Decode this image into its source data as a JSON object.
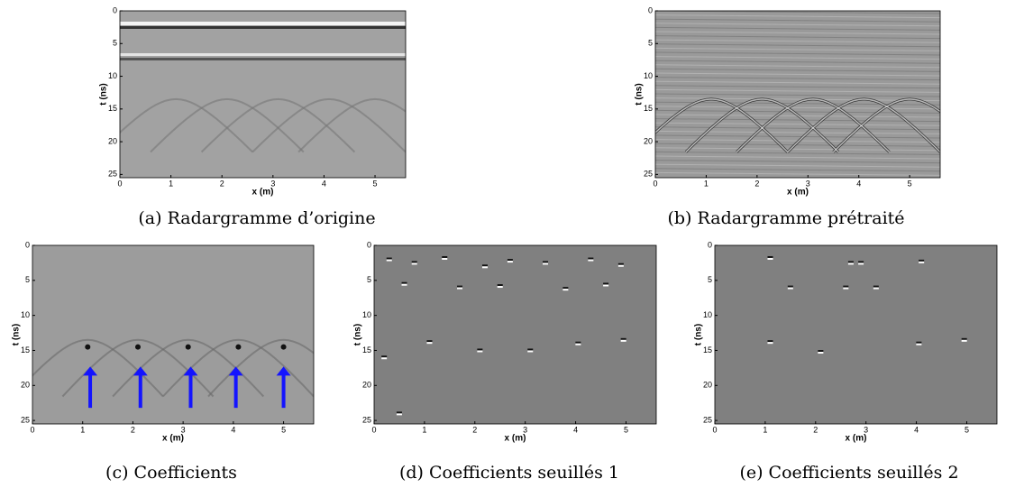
{
  "panels": [
    {
      "caption": "(a) Radargramme d’origine",
      "xlabel": "x (m)",
      "ylabel": "t (ns)",
      "xlim": [
        0,
        5.6
      ],
      "ylim": [
        0,
        25.5
      ],
      "xticks": [
        0,
        1,
        2,
        3,
        4,
        5
      ],
      "yticks": [
        0,
        5,
        10,
        15,
        20,
        25
      ]
    },
    {
      "caption": "(b) Radargramme prétraité",
      "xlabel": "x (m)",
      "ylabel": "t (ns)",
      "xlim": [
        0,
        5.6
      ],
      "ylim": [
        0,
        25.5
      ],
      "xticks": [
        0,
        1,
        2,
        3,
        4,
        5
      ],
      "yticks": [
        0,
        5,
        10,
        15,
        20,
        25
      ]
    },
    {
      "caption": "(c) Coefficients",
      "xlabel": "x (m)",
      "ylabel": "t (ns)",
      "xlim": [
        0,
        5.6
      ],
      "ylim": [
        0,
        25.5
      ],
      "xticks": [
        0,
        1,
        2,
        3,
        4,
        5
      ],
      "yticks": [
        0,
        5,
        10,
        15,
        20,
        25
      ]
    },
    {
      "caption": "(d) Coefficients seuillés 1",
      "xlabel": "x (m)",
      "ylabel": "t (ns)",
      "xlim": [
        0,
        5.6
      ],
      "ylim": [
        0,
        25.5
      ],
      "xticks": [
        0,
        1,
        2,
        3,
        4,
        5
      ],
      "yticks": [
        0,
        5,
        10,
        15,
        20,
        25
      ]
    },
    {
      "caption": "(e) Coefficients seuillés 2",
      "xlabel": "x (m)",
      "ylabel": "t (ns)",
      "xlim": [
        0,
        5.6
      ],
      "ylim": [
        0,
        25.5
      ],
      "xticks": [
        0,
        1,
        2,
        3,
        4,
        5
      ],
      "yticks": [
        0,
        5,
        10,
        15,
        20,
        25
      ]
    }
  ]
}
